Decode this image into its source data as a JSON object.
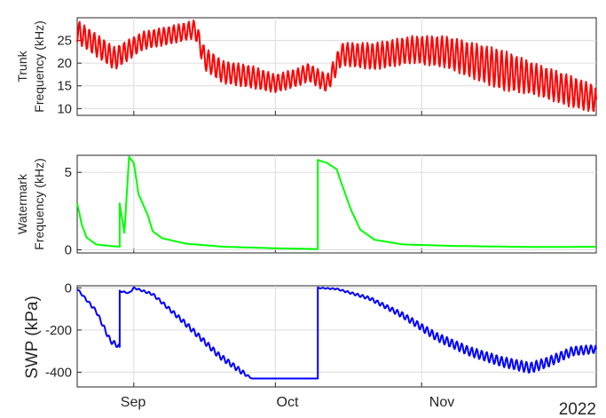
{
  "colors": {
    "trunk": "#ff0000",
    "watermark": "#00ff00",
    "swp": "#0000ff",
    "grid": "#dcdcdc",
    "axis": "#262626"
  },
  "x_axis": {
    "ticks": [
      "Sep",
      "Oct",
      "Nov"
    ],
    "year_label": "2022",
    "range": [
      "2022-08-20",
      "2022-12-08"
    ]
  },
  "chart_data": [
    {
      "type": "line",
      "ylabel": [
        "Trunk",
        "Frequency (kHz)"
      ],
      "yticks": [
        10,
        15,
        20,
        25
      ],
      "ylim": [
        8.5,
        30
      ],
      "grid": true,
      "series": [
        {
          "color": "#ff0000",
          "x": [
            "2022-08-20",
            "2022-08-24",
            "2022-08-28",
            "2022-09-03",
            "2022-09-08",
            "2022-09-14",
            "2022-09-16",
            "2022-09-20",
            "2022-09-26",
            "2022-10-01",
            "2022-10-06",
            "2022-10-08",
            "2022-10-12",
            "2022-10-15",
            "2022-10-22",
            "2022-10-30",
            "2022-11-06",
            "2022-11-12",
            "2022-11-18",
            "2022-11-25",
            "2022-12-02",
            "2022-12-08"
          ],
          "values": [
            27,
            24,
            21,
            25,
            26,
            27.5,
            21,
            18,
            17,
            15.5,
            17,
            18,
            15.5,
            22,
            21.5,
            23,
            22.5,
            20.5,
            18.5,
            16.5,
            14,
            12
          ],
          "oscillation_amplitude": [
            2.5,
            2.5,
            2.5,
            2,
            2,
            2,
            2.5,
            2.5,
            2.5,
            2,
            2,
            2,
            2,
            2.5,
            3,
            3,
            3.5,
            4,
            4.5,
            3.5,
            3.5,
            3
          ]
        }
      ]
    },
    {
      "type": "line",
      "ylabel": [
        "Watermark",
        "Frequency (kHz)"
      ],
      "yticks": [
        0,
        5
      ],
      "ylim": [
        -0.2,
        6.1
      ],
      "grid": true,
      "series": [
        {
          "color": "#00ff00",
          "x": [
            "2022-08-20",
            "2022-08-21",
            "2022-08-22",
            "2022-08-24",
            "2022-08-27",
            "2022-08-29",
            "2022-08-29",
            "2022-08-30",
            "2022-08-31",
            "2022-09-01",
            "2022-09-02",
            "2022-09-04",
            "2022-09-05",
            "2022-09-07",
            "2022-09-12",
            "2022-09-20",
            "2022-10-01",
            "2022-10-10",
            "2022-10-10",
            "2022-10-12",
            "2022-10-14",
            "2022-10-15",
            "2022-10-17",
            "2022-10-19",
            "2022-10-22",
            "2022-10-28",
            "2022-11-08",
            "2022-11-25",
            "2022-12-08"
          ],
          "values": [
            3.0,
            1.6,
            0.8,
            0.35,
            0.25,
            0.2,
            3.0,
            1.1,
            6.0,
            5.6,
            3.6,
            2.2,
            1.2,
            0.75,
            0.4,
            0.2,
            0.1,
            0.05,
            5.8,
            5.6,
            5.2,
            4.3,
            2.6,
            1.3,
            0.65,
            0.35,
            0.25,
            0.18,
            0.2
          ]
        }
      ]
    },
    {
      "type": "line",
      "ylabel": [
        "SWP (kPa)"
      ],
      "yticks": [
        0,
        -200,
        -400
      ],
      "ylim": [
        -470,
        10
      ],
      "grid": true,
      "series": [
        {
          "color": "#0000ff",
          "x": [
            "2022-08-20",
            "2022-08-24",
            "2022-08-27",
            "2022-08-29",
            "2022-08-29",
            "2022-08-31",
            "2022-09-01",
            "2022-09-05",
            "2022-09-12",
            "2022-09-19",
            "2022-09-24",
            "2022-09-26",
            "2022-10-10",
            "2022-10-10",
            "2022-10-14",
            "2022-10-21",
            "2022-10-28",
            "2022-11-04",
            "2022-11-11",
            "2022-11-18",
            "2022-11-24",
            "2022-11-28",
            "2022-12-03",
            "2022-12-08"
          ],
          "values": [
            -5,
            -110,
            -250,
            -280,
            -15,
            -25,
            0,
            -30,
            -170,
            -320,
            -400,
            -430,
            -430,
            0,
            -5,
            -50,
            -130,
            -230,
            -300,
            -350,
            -380,
            -350,
            -300,
            -290
          ],
          "oscillation_amplitude": [
            3,
            8,
            12,
            10,
            3,
            3,
            3,
            6,
            12,
            14,
            12,
            0,
            0,
            2,
            3,
            8,
            14,
            20,
            22,
            24,
            26,
            24,
            22,
            20
          ]
        }
      ]
    }
  ]
}
